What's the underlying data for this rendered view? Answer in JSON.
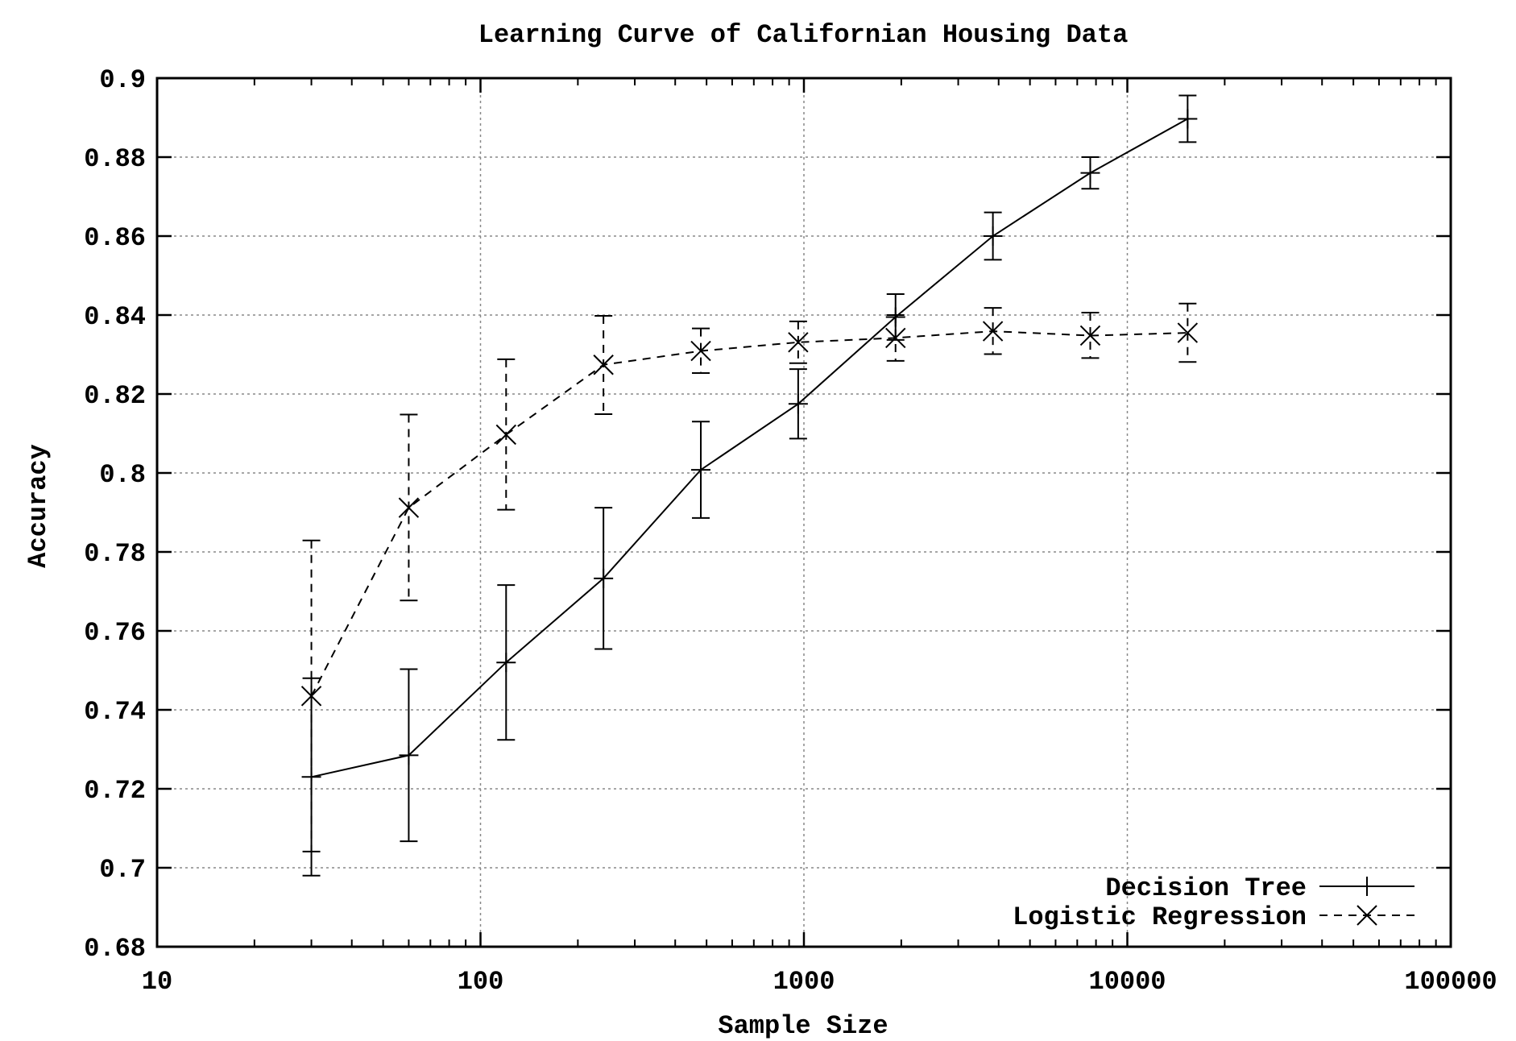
{
  "chart_data": {
    "type": "line",
    "title": "Learning Curve of Californian Housing Data",
    "xlabel": "Sample Size",
    "ylabel": "Accuracy",
    "x_scale": "log",
    "xlim": [
      10,
      100000
    ],
    "ylim": [
      0.68,
      0.9
    ],
    "x_ticks": [
      10,
      100,
      1000,
      10000,
      100000
    ],
    "x_tick_labels": [
      "10",
      "100",
      "1000",
      "10000",
      "100000"
    ],
    "y_ticks": [
      0.68,
      0.7,
      0.72,
      0.74,
      0.76,
      0.78,
      0.8,
      0.82,
      0.84,
      0.86,
      0.88,
      0.9
    ],
    "y_tick_labels": [
      "0.68",
      "0.7",
      "0.72",
      "0.74",
      "0.76",
      "0.78",
      "0.8",
      "0.82",
      "0.84",
      "0.86",
      "0.88",
      "0.9"
    ],
    "grid": true,
    "legend_position": "bottom-right",
    "x": [
      30,
      60,
      120,
      240,
      480,
      960,
      1920,
      3840,
      7680,
      15360
    ],
    "series": [
      {
        "name": "Decision Tree",
        "line_style": "solid",
        "marker": "plus",
        "values": [
          0.723,
          0.7285,
          0.752,
          0.7733,
          0.8008,
          0.8175,
          0.8395,
          0.86,
          0.876,
          0.8897
        ],
        "error_low": [
          0.698,
          0.7067,
          0.7324,
          0.7554,
          0.7886,
          0.8087,
          0.8337,
          0.854,
          0.872,
          0.8838
        ],
        "error_high": [
          0.748,
          0.7503,
          0.7716,
          0.7912,
          0.813,
          0.8263,
          0.8453,
          0.866,
          0.88,
          0.8956
        ]
      },
      {
        "name": "Logistic Regression",
        "line_style": "dashed",
        "marker": "x",
        "values": [
          0.7435,
          0.7912,
          0.8097,
          0.8274,
          0.8309,
          0.8331,
          0.8342,
          0.8359,
          0.8348,
          0.8355
        ],
        "error_low": [
          0.7041,
          0.7677,
          0.7907,
          0.8149,
          0.8253,
          0.8278,
          0.8284,
          0.8301,
          0.8291,
          0.8281
        ],
        "error_high": [
          0.7829,
          0.8148,
          0.8288,
          0.8398,
          0.8366,
          0.8384,
          0.84,
          0.8418,
          0.8406,
          0.8429
        ]
      }
    ]
  }
}
